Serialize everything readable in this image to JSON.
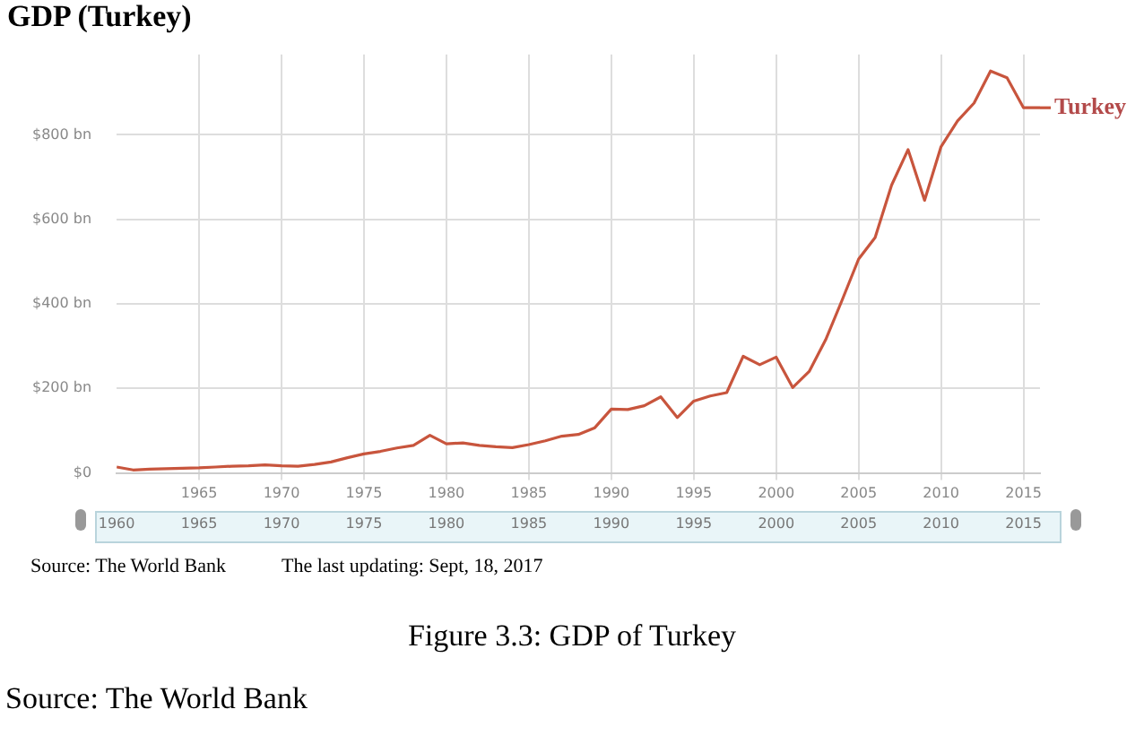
{
  "chart_data": {
    "type": "line",
    "title": "GDP (Turkey)",
    "x": [
      1960,
      1961,
      1962,
      1963,
      1964,
      1965,
      1966,
      1967,
      1968,
      1969,
      1970,
      1971,
      1972,
      1973,
      1974,
      1975,
      1976,
      1977,
      1978,
      1979,
      1980,
      1981,
      1982,
      1983,
      1984,
      1985,
      1986,
      1987,
      1988,
      1989,
      1990,
      1991,
      1992,
      1993,
      1994,
      1995,
      1996,
      1997,
      1998,
      1999,
      2000,
      2001,
      2002,
      2003,
      2004,
      2005,
      2006,
      2007,
      2008,
      2009,
      2010,
      2011,
      2012,
      2013,
      2014,
      2015,
      2016
    ],
    "series": [
      {
        "name": "Turkey",
        "color": "#c8553d",
        "values": [
          14,
          7,
          9,
          10,
          11,
          12,
          14,
          16,
          17,
          19,
          17,
          16,
          20,
          26,
          36,
          45,
          51,
          59,
          65,
          89,
          69,
          71,
          65,
          62,
          60,
          67,
          76,
          87,
          91,
          107,
          151,
          150,
          159,
          180,
          131,
          170,
          182,
          190,
          276,
          256,
          274,
          202,
          240,
          315,
          409,
          506,
          557,
          681,
          765,
          645,
          772,
          833,
          875,
          951,
          935,
          864,
          864
        ]
      }
    ],
    "xlim": [
      1960,
      2016
    ],
    "xticks": [
      1965,
      1970,
      1975,
      1980,
      1985,
      1990,
      1995,
      2000,
      2005,
      2010,
      2015
    ],
    "x2lim": [
      1960,
      2016
    ],
    "x2ticks": [
      1960,
      1965,
      1970,
      1975,
      1980,
      1985,
      1990,
      1995,
      2000,
      2005,
      2010,
      2015
    ],
    "ylim": [
      0,
      990
    ],
    "yticks": [
      {
        "value": 0,
        "label": "$0"
      },
      {
        "value": 200,
        "label": "$200 bn"
      },
      {
        "value": 400,
        "label": "$400 bn"
      },
      {
        "value": 600,
        "label": "$600 bn"
      },
      {
        "value": 800,
        "label": "$800 bn"
      }
    ],
    "grid": true,
    "legend": "right",
    "marker": "none",
    "line_style": "solid",
    "annotations": [
      "Source: The World Bank",
      "The last updating: Sept, 18, 2017",
      "Figure 3.3: GDP of Turkey",
      "Source: The World Bank"
    ]
  }
}
